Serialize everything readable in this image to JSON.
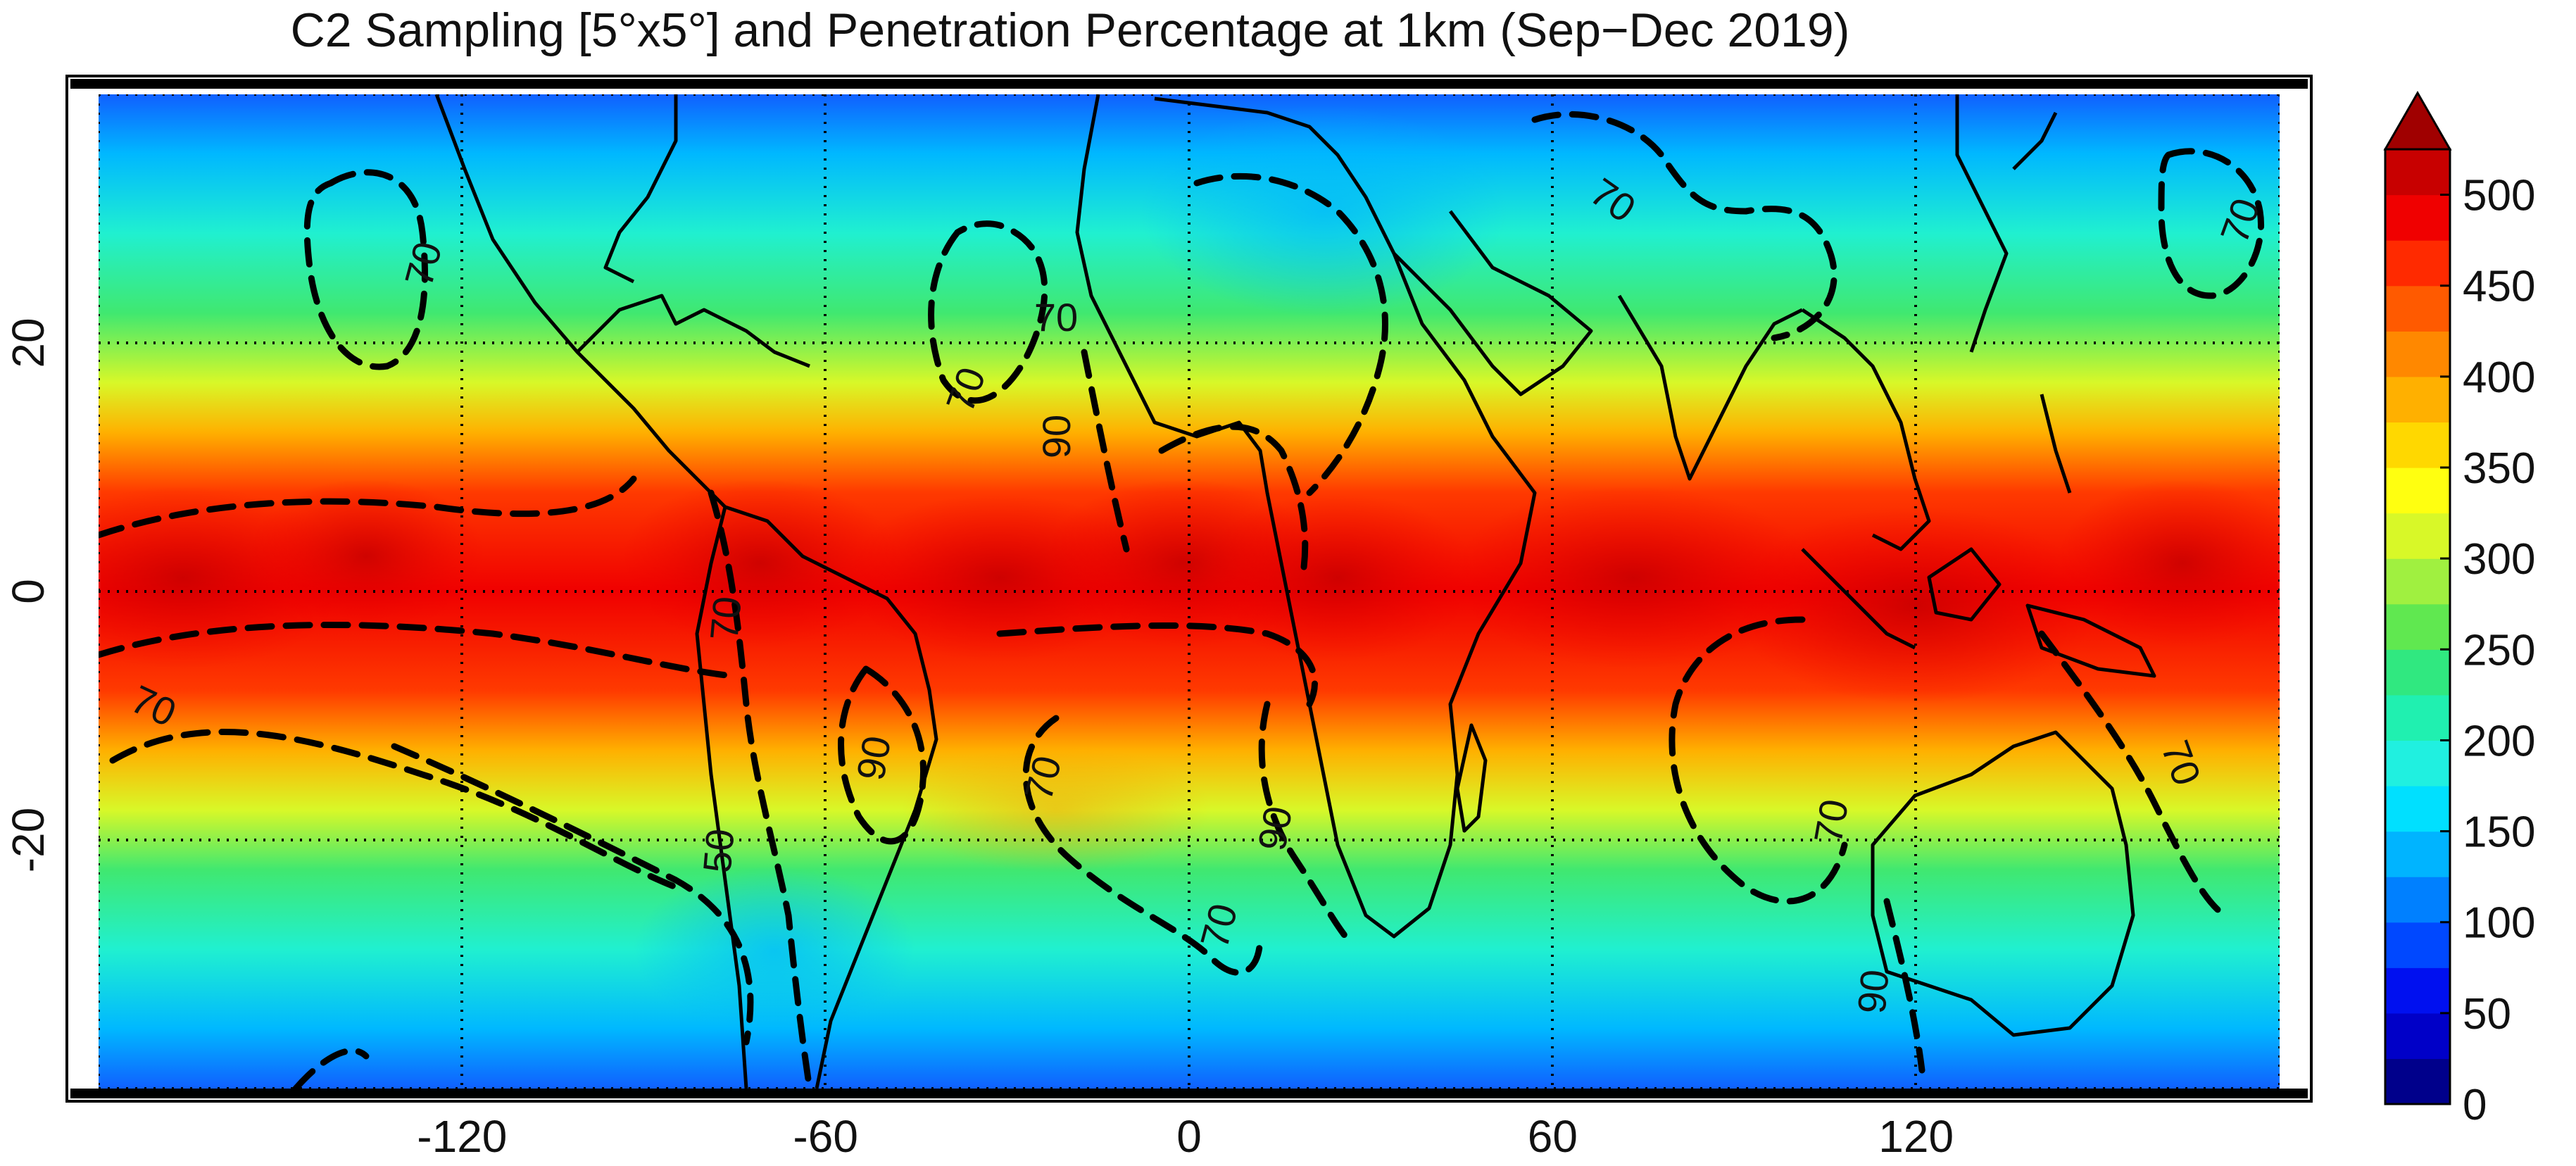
{
  "title": "C2 Sampling [5°x5°] and Penetration Percentage at 1km (Sep−Dec 2019)",
  "map": {
    "projection": "equirectangular",
    "lon_range": [
      -180,
      180
    ],
    "lat_range": [
      -40,
      40
    ],
    "gridlines": "dotted",
    "grid_lon": [
      -120,
      -60,
      0,
      60,
      120
    ],
    "grid_lat": [
      -20,
      0,
      20
    ],
    "coastlines": true
  },
  "axes": {
    "x_ticks": [
      "-120",
      "-60",
      "0",
      "60",
      "120"
    ],
    "y_ticks": [
      "-20",
      "0",
      "20"
    ]
  },
  "colorbar": {
    "ticks": [
      "0",
      "50",
      "100",
      "150",
      "200",
      "250",
      "300",
      "350",
      "400",
      "450",
      "500"
    ],
    "min": 0,
    "max": 500,
    "extend": "max",
    "colors": [
      "#00008b",
      "#0000c8",
      "#0010f0",
      "#0048ff",
      "#0080ff",
      "#00b4ff",
      "#00e0ff",
      "#20f0e0",
      "#20f0b0",
      "#30e880",
      "#60e850",
      "#a0f040",
      "#d8f828",
      "#ffff10",
      "#ffd800",
      "#ffb000",
      "#ff8800",
      "#ff5a00",
      "#ff2a00",
      "#f00000",
      "#c80000"
    ],
    "extend_color": "#a00000"
  },
  "contours": {
    "style": "dashed",
    "labels": [
      "70",
      "70",
      "70",
      "70",
      "70",
      "70",
      "70",
      "70",
      "70",
      "70",
      "70",
      "90",
      "90",
      "90",
      "90",
      "50"
    ]
  }
}
